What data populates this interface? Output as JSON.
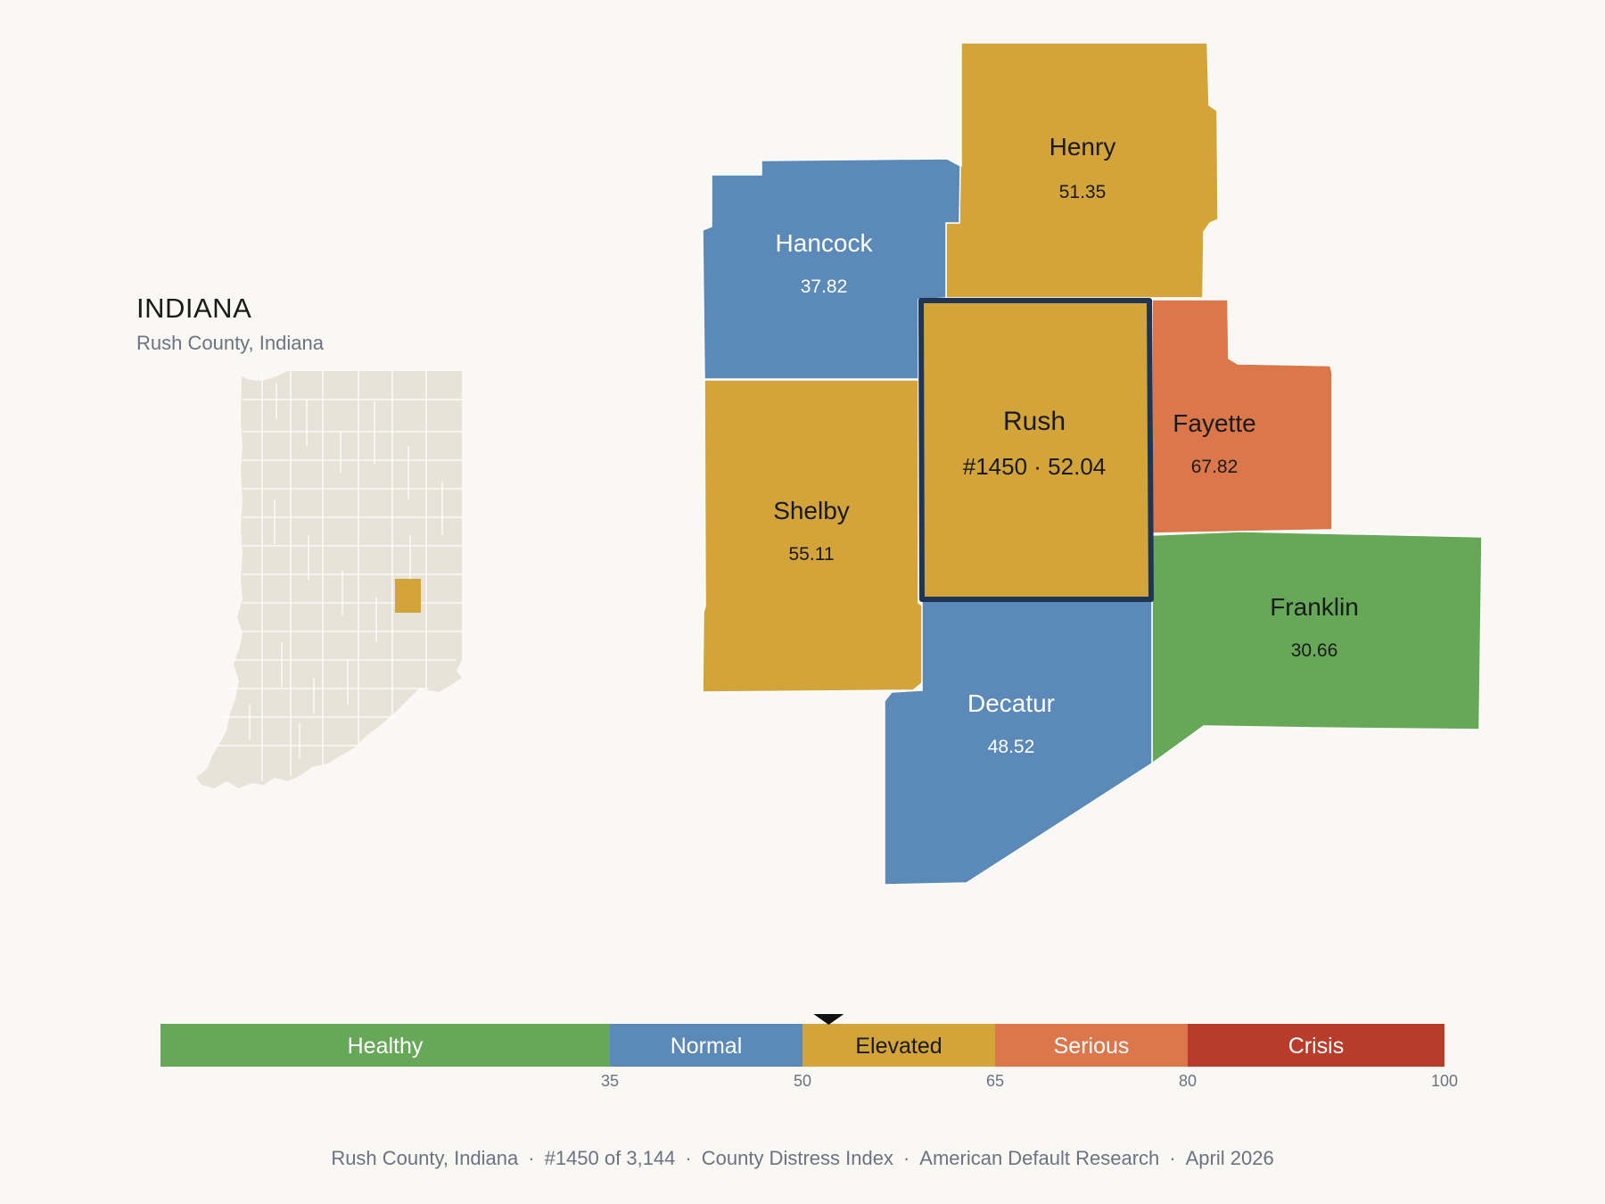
{
  "header": {
    "state": "INDIANA",
    "subtitle": "Rush County, Indiana"
  },
  "colors": {
    "Healthy": "#66a758",
    "Normal": "#5b89b8",
    "Elevated": "#d3a43a",
    "Serious": "#db774a",
    "Crisis": "#b93c2b",
    "background": "#faf8f5",
    "inset_state": "#e8e3d8",
    "highlight_border": "#1f3556"
  },
  "focus": {
    "name": "Rush",
    "rank_score": "#1450 · 52.04",
    "score": 52.04,
    "category": "Elevated"
  },
  "neighbors": [
    {
      "name": "Henry",
      "score_label": "51.35",
      "score": 51.35,
      "category": "Elevated"
    },
    {
      "name": "Hancock",
      "score_label": "37.82",
      "score": 37.82,
      "category": "Normal"
    },
    {
      "name": "Fayette",
      "score_label": "67.82",
      "score": 67.82,
      "category": "Serious"
    },
    {
      "name": "Shelby",
      "score_label": "55.11",
      "score": 55.11,
      "category": "Elevated"
    },
    {
      "name": "Franklin",
      "score_label": "30.66",
      "score": 30.66,
      "category": "Healthy"
    },
    {
      "name": "Decatur",
      "score_label": "48.52",
      "score": 48.52,
      "category": "Normal"
    }
  ],
  "legend": {
    "min": 0,
    "max": 100,
    "marker_value": 52.04,
    "segments": [
      {
        "label": "Healthy",
        "from": 0,
        "to": 35
      },
      {
        "label": "Normal",
        "from": 35,
        "to": 50
      },
      {
        "label": "Elevated",
        "from": 50,
        "to": 65
      },
      {
        "label": "Serious",
        "from": 65,
        "to": 80
      },
      {
        "label": "Crisis",
        "from": 80,
        "to": 100
      }
    ],
    "ticks": [
      "35",
      "50",
      "65",
      "80",
      "100"
    ]
  },
  "footer": {
    "place": "Rush County, Indiana",
    "rank": "#1450 of 3,144",
    "index": "County Distress Index",
    "org": "American Default Research",
    "date": "April 2026"
  }
}
